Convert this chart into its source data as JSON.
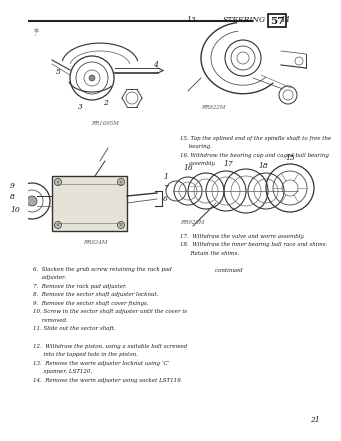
{
  "title": "STEERING",
  "page_num": "57",
  "bg_color": "#f0ede6",
  "text_color": "#1a1a1a",
  "header_line_color": "#222222",
  "instructions_left": [
    "6.  Slacken the grub screw retaining the rack pad",
    "     adjuster.",
    "7.  Remove the rack pad adjuster.",
    "8.  Remove the sector shaft adjuster locknut.",
    "9.  Remove the sector shaft cover fixings.",
    "10. Screw in the sector shaft adjuster until the cover is",
    "     removed.",
    "11. Slide out the sector shaft."
  ],
  "instructions_right_top": [
    "15. Tap the splined end of the spindle shaft to free the",
    "     bearing.",
    "16. Withdraw the bearing cup and caged ball bearing",
    "     assembly."
  ],
  "instructions_right_bot": [
    "17.  Withdraw the valve and worm assembly.",
    "18.  Withdraw the inner bearing ball race and shims.",
    "      Retain the shims.",
    "",
    "                    continued"
  ],
  "instructions_bottom": [
    "12.  Withdraw the piston, using a suitable bolt screwed",
    "      into the tapped hole in the piston.",
    "13.  Remove the worm adjuster locknut using ‘C’",
    "      spanner, LST120.",
    "14.  Remove the worm adjuster using socket LST119."
  ],
  "footer_page": "21",
  "caption_tl": "RR1695M",
  "caption_tr": "RR922M",
  "caption_bl": "RR924M",
  "caption_br": "RR923M"
}
